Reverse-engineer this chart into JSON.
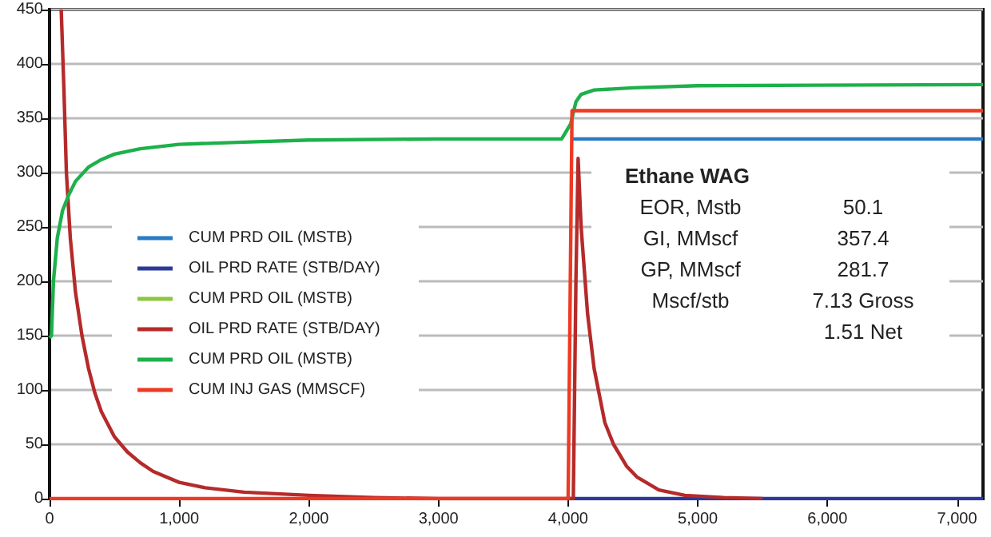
{
  "chart_data": {
    "type": "line",
    "xlim": [
      0,
      7200
    ],
    "ylim": [
      0,
      450
    ],
    "xticks": [
      0,
      {
        "value": 1000,
        "label": "1,000"
      },
      {
        "value": 2000,
        "label": "2,000"
      },
      {
        "value": 3000,
        "label": "3,000"
      },
      {
        "value": 4000,
        "label": "4,000"
      },
      {
        "value": 5000,
        "label": "5,000"
      },
      {
        "value": 6000,
        "label": "6,000"
      },
      {
        "value": 7000,
        "label": "7,000"
      }
    ],
    "yticks": [
      0,
      50,
      100,
      150,
      200,
      250,
      300,
      350,
      400,
      450
    ],
    "grid": "y",
    "legend": "left",
    "series": [
      {
        "name": "CUM PRD OIL (MSTB)",
        "color": "#2a7ac4",
        "x": [
          4030,
          7200
        ],
        "values": [
          331,
          331
        ]
      },
      {
        "name": "OIL PRD RATE (STB/DAY)",
        "color": "#2b3a9a",
        "x": [
          4000,
          7200
        ],
        "values": [
          0,
          0
        ]
      },
      {
        "name": "CUM PRD OIL (MSTB)",
        "color": "#8dc63f"
      },
      {
        "name": "OIL PRD RATE (STB/DAY)",
        "color": "#b52a2a",
        "x": [
          90,
          110,
          130,
          160,
          200,
          250,
          300,
          350,
          400,
          500,
          600,
          700,
          800,
          1000,
          1200,
          1500,
          2000,
          2500,
          3000,
          4040,
          4060,
          4077,
          4100,
          4150,
          4200,
          4283,
          4350,
          4450,
          4530,
          4700,
          4900,
          5200,
          5500
        ],
        "values": [
          450,
          380,
          300,
          240,
          190,
          150,
          120,
          97,
          80,
          57,
          43,
          33,
          25,
          15,
          10,
          6,
          3,
          1,
          0,
          0,
          200,
          313,
          250,
          170,
          120,
          70,
          50,
          30,
          20,
          8,
          3,
          1,
          0
        ]
      },
      {
        "name": "CUM PRD OIL (MSTB)",
        "color": "#1db04b",
        "x": [
          0,
          15,
          30,
          60,
          100,
          150,
          200,
          300,
          400,
          500,
          700,
          1000,
          1500,
          2000,
          3000,
          3950,
          4020,
          4060,
          4100,
          4200,
          4500,
          5000,
          7200
        ],
        "values": [
          148,
          150,
          200,
          240,
          265,
          280,
          292,
          305,
          312,
          317,
          322,
          326,
          328,
          330,
          331,
          331,
          345,
          365,
          372,
          376,
          378,
          380,
          381
        ]
      },
      {
        "name": "CUM INJ GAS (MMSCF)",
        "color": "#ee3a23",
        "x": [
          0,
          4000,
          4030,
          7200
        ],
        "values": [
          0,
          0,
          357,
          357
        ]
      }
    ],
    "annotations": [
      "Ethane WAG",
      "EOR, Mstb",
      "GI, MMscf",
      "GP, MMscf",
      "Mscf/stb",
      "50.1",
      "357.4",
      "281.7",
      "7.13 Gross",
      "1.51 Net"
    ]
  }
}
